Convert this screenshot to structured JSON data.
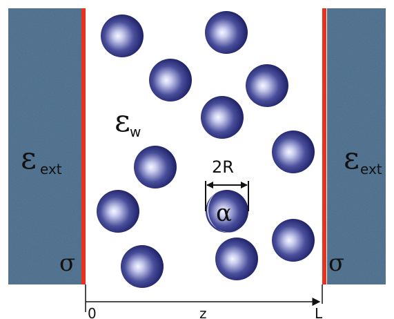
{
  "walls": {
    "left": {
      "epsilon_symbol": "ε",
      "epsilon_subscript": "ext",
      "charge_symbol": "σ"
    },
    "right": {
      "epsilon_symbol": "ε",
      "epsilon_subscript": "ext",
      "charge_symbol": "σ"
    }
  },
  "medium": {
    "epsilon_symbol": "ε",
    "epsilon_subscript": "w"
  },
  "particle": {
    "diameter_label": "2R",
    "marked_label": "α"
  },
  "axis": {
    "start_label": "0",
    "variable_label": "z",
    "end_label": "L"
  },
  "colors": {
    "wall_fill": "#5a7e9e",
    "charged_surface": "#e8321e",
    "sphere_dark": "#1c1f63",
    "sphere_light": "#f2f4ff",
    "marked_sphere": "#dde0f2"
  }
}
